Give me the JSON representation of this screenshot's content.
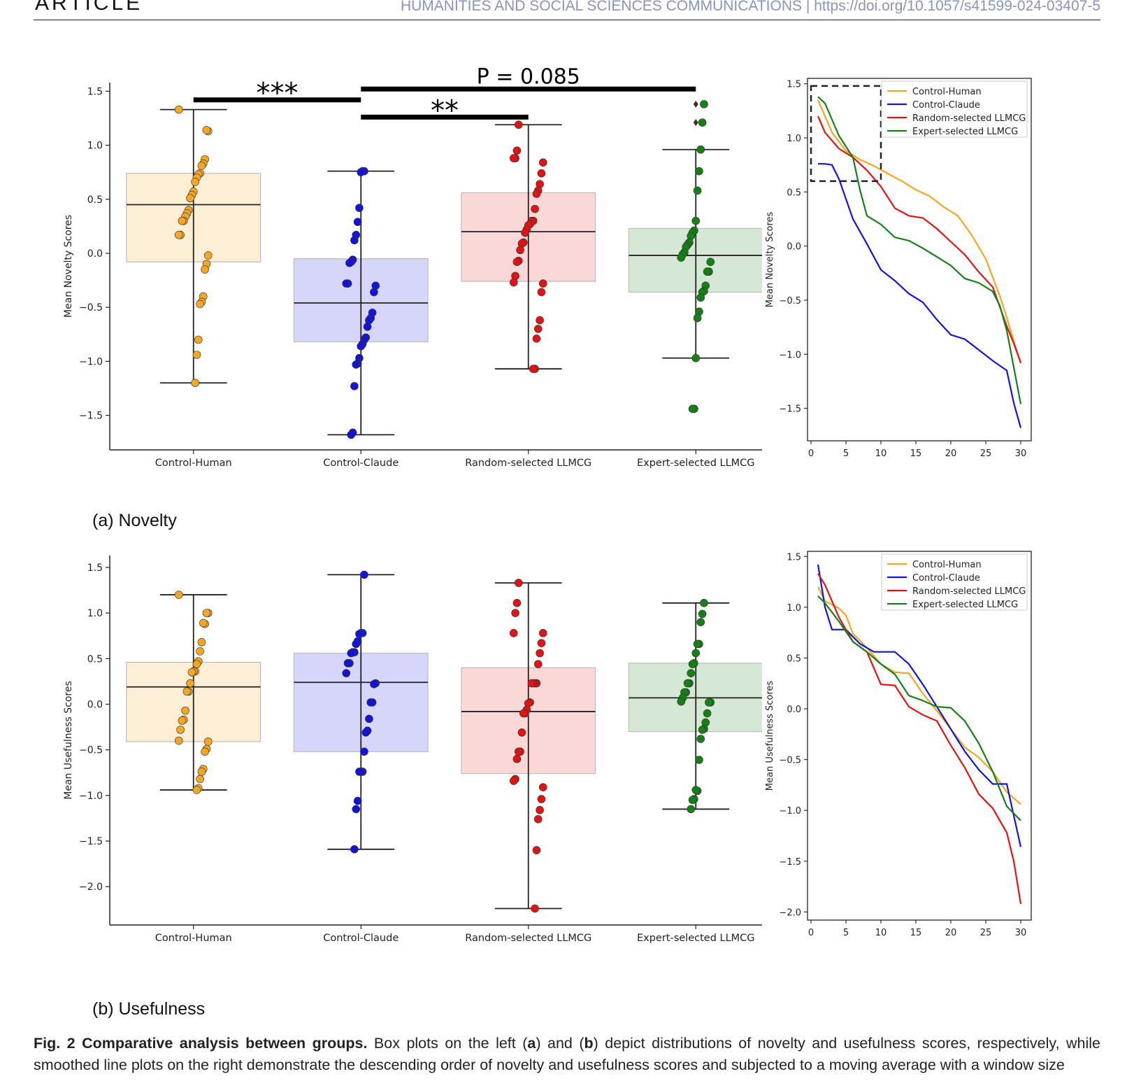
{
  "header": {
    "article_label": "ARTICLE",
    "journal": "HUMANITIES AND SOCIAL SCIENCES COMMUNICATIONS",
    "separator": "|",
    "doi": "https://doi.org/10.1057/s41599-024-03407-5"
  },
  "colors": {
    "Control-Human": "#f5a623",
    "Control-Claude": "#1414d8",
    "Random-selected LLMCG": "#e01414",
    "Expert-selected LLMCG": "#168016"
  },
  "panels": {
    "a_label": "(a) Novelty",
    "b_label": "(b) Usefulness"
  },
  "caption": {
    "fig_label": "Fig. 2 Comparative analysis between groups.",
    "text_1": " Box plots on the left (",
    "a": "a",
    "text_2": ") and (",
    "b": "b",
    "text_3": ") depict distributions of novelty and usefulness scores, respectively, while smoothed line plots on the right demonstrate the descending order of novelty and usefulness scores and subjected to a moving average with a window size"
  },
  "chart_data": [
    {
      "id": "novelty-box",
      "type": "box",
      "ylabel": "Mean Novelty Scores",
      "categories": [
        "Control-Human",
        "Control-Claude",
        "Random-selected LLMCG",
        "Expert-selected LLMCG"
      ],
      "yticks": [
        -1.5,
        -1.0,
        -0.5,
        0.0,
        0.5,
        1.0,
        1.5
      ],
      "ylim": [
        -1.82,
        1.58
      ],
      "boxes": [
        {
          "q1": -0.08,
          "median": 0.45,
          "q3": 0.74,
          "whisker_low": -1.2,
          "whisker_high": 1.33,
          "outliers": []
        },
        {
          "q1": -0.82,
          "median": -0.46,
          "q3": -0.05,
          "whisker_low": -1.68,
          "whisker_high": 0.76,
          "outliers": []
        },
        {
          "q1": -0.26,
          "median": 0.2,
          "q3": 0.56,
          "whisker_low": -1.07,
          "whisker_high": 1.19,
          "outliers": []
        },
        {
          "q1": -0.36,
          "median": -0.02,
          "q3": 0.23,
          "whisker_low": -0.97,
          "whisker_high": 0.96,
          "outliers": [
            1.38,
            1.21,
            -1.44
          ]
        }
      ],
      "points": [
        [
          1.33,
          1.13,
          1.14,
          0.87,
          0.83,
          0.81,
          0.74,
          0.73,
          0.7,
          0.66,
          0.57,
          0.54,
          0.51,
          0.4,
          0.37,
          0.34,
          0.3,
          0.3,
          0.17,
          0.17,
          -0.02,
          -0.1,
          -0.15,
          -0.4,
          -0.45,
          -0.47,
          -0.8,
          -0.94,
          -1.2
        ],
        [
          0.76,
          0.76,
          0.75,
          0.42,
          0.29,
          0.17,
          0.12,
          -0.06,
          -0.08,
          -0.09,
          -0.28,
          -0.28,
          -0.3,
          -0.36,
          -0.55,
          -0.6,
          -0.62,
          -0.68,
          -0.78,
          -0.8,
          -0.84,
          -0.86,
          -0.97,
          -1.02,
          -1.03,
          -1.23,
          -1.66,
          -1.68
        ],
        [
          1.19,
          0.95,
          0.88,
          0.88,
          0.84,
          0.74,
          0.64,
          0.58,
          0.55,
          0.41,
          0.3,
          0.3,
          0.27,
          0.26,
          0.22,
          0.19,
          0.1,
          0.09,
          0.03,
          -0.07,
          -0.08,
          -0.21,
          -0.27,
          -0.28,
          -0.36,
          -0.62,
          -0.7,
          -0.79,
          -1.07,
          -1.07
        ],
        [
          1.38,
          1.21,
          0.96,
          0.76,
          0.58,
          0.3,
          0.21,
          0.19,
          0.16,
          0.1,
          0.08,
          0.06,
          0.01,
          -0.01,
          -0.04,
          -0.08,
          -0.17,
          -0.17,
          -0.3,
          -0.35,
          -0.36,
          -0.41,
          -0.54,
          -0.6,
          -0.97,
          -1.44,
          -1.44
        ]
      ],
      "annotations": [
        {
          "text": "***",
          "from": 0,
          "to": 1,
          "y": 1.42
        },
        {
          "text": "**",
          "from": 1,
          "to": 2,
          "y": 1.26
        },
        {
          "text": "P = 0.085",
          "from": 1,
          "to": 3,
          "y": 1.52
        }
      ]
    },
    {
      "id": "novelty-line",
      "type": "line",
      "ylabel": "Mean Novelty Scores",
      "xticks": [
        0,
        5,
        10,
        15,
        20,
        25,
        30
      ],
      "yticks": [
        -1.5,
        -1.0,
        -0.5,
        0.0,
        0.5,
        1.0,
        1.5
      ],
      "xlim": [
        -0.5,
        31.5
      ],
      "ylim": [
        -1.8,
        1.55
      ],
      "legend": "top-right",
      "highlight_box": {
        "x": [
          0,
          10
        ],
        "y": [
          0.6,
          1.48
        ]
      },
      "series": [
        {
          "name": "Control-Human",
          "x": [
            1,
            3,
            5,
            7,
            9,
            11,
            13,
            15,
            17,
            19,
            21,
            23,
            25,
            27,
            28,
            29,
            30
          ],
          "y": [
            1.35,
            1.05,
            0.88,
            0.8,
            0.74,
            0.67,
            0.6,
            0.52,
            0.46,
            0.36,
            0.28,
            0.1,
            -0.12,
            -0.46,
            -0.66,
            -0.88,
            -1.08
          ]
        },
        {
          "name": "Control-Claude",
          "x": [
            1,
            2,
            3,
            4,
            6,
            8,
            10,
            12,
            14,
            16,
            18,
            20,
            22,
            24,
            26,
            28,
            29,
            30
          ],
          "y": [
            0.76,
            0.76,
            0.75,
            0.62,
            0.25,
            0.02,
            -0.22,
            -0.32,
            -0.44,
            -0.52,
            -0.68,
            -0.82,
            -0.86,
            -0.96,
            -1.06,
            -1.15,
            -1.45,
            -1.68
          ]
        },
        {
          "name": "Random-selected LLMCG",
          "x": [
            1,
            2,
            4,
            6,
            8,
            10,
            12,
            14,
            16,
            18,
            20,
            22,
            24,
            26,
            27,
            28,
            29,
            30
          ],
          "y": [
            1.2,
            1.05,
            0.9,
            0.82,
            0.7,
            0.55,
            0.35,
            0.28,
            0.26,
            0.16,
            0.04,
            -0.08,
            -0.24,
            -0.38,
            -0.56,
            -0.74,
            -0.9,
            -1.08
          ]
        },
        {
          "name": "Expert-selected LLMCG",
          "x": [
            1,
            2,
            4,
            6,
            7,
            8,
            10,
            12,
            14,
            16,
            18,
            20,
            22,
            24,
            26,
            27,
            28,
            29,
            30
          ],
          "y": [
            1.38,
            1.32,
            1.02,
            0.82,
            0.52,
            0.28,
            0.2,
            0.08,
            0.05,
            -0.02,
            -0.1,
            -0.18,
            -0.3,
            -0.34,
            -0.42,
            -0.55,
            -0.78,
            -1.12,
            -1.46
          ]
        }
      ]
    },
    {
      "id": "usefulness-box",
      "type": "box",
      "ylabel": "Mean Usefulness Scores",
      "categories": [
        "Control-Human",
        "Control-Claude",
        "Random-selected LLMCG",
        "Expert-selected LLMCG"
      ],
      "yticks": [
        -2.0,
        -1.5,
        -1.0,
        -0.5,
        0.0,
        0.5,
        1.0,
        1.5
      ],
      "ylim": [
        -2.42,
        1.63
      ],
      "boxes": [
        {
          "q1": -0.41,
          "median": 0.19,
          "q3": 0.46,
          "whisker_low": -0.94,
          "whisker_high": 1.2,
          "outliers": []
        },
        {
          "q1": -0.52,
          "median": 0.24,
          "q3": 0.56,
          "whisker_low": -1.59,
          "whisker_high": 1.42,
          "outliers": []
        },
        {
          "q1": -0.76,
          "median": -0.08,
          "q3": 0.4,
          "whisker_low": -2.24,
          "whisker_high": 1.33,
          "outliers": []
        },
        {
          "q1": -0.3,
          "median": 0.07,
          "q3": 0.45,
          "whisker_low": -1.15,
          "whisker_high": 1.11,
          "outliers": []
        }
      ],
      "points": [
        [
          1.2,
          1.0,
          1.0,
          0.88,
          0.89,
          0.68,
          0.58,
          0.47,
          0.44,
          0.36,
          0.36,
          0.35,
          0.23,
          0.14,
          0.14,
          -0.07,
          -0.17,
          -0.18,
          -0.28,
          -0.4,
          -0.41,
          -0.49,
          -0.52,
          -0.71,
          -0.74,
          -0.82,
          -0.92,
          -0.94
        ],
        [
          1.42,
          0.78,
          0.78,
          0.77,
          0.69,
          0.66,
          0.57,
          0.57,
          0.56,
          0.45,
          0.45,
          0.34,
          0.23,
          0.22,
          0.02,
          0.02,
          -0.16,
          -0.29,
          -0.31,
          -0.52,
          -0.74,
          -0.74,
          -0.74,
          -1.06,
          -1.15,
          -1.59
        ],
        [
          1.33,
          1.11,
          1.0,
          0.78,
          0.78,
          0.67,
          0.56,
          0.44,
          0.23,
          0.23,
          0.23,
          0.23,
          0.02,
          0.01,
          -0.06,
          -0.1,
          -0.1,
          -0.31,
          -0.52,
          -0.52,
          -0.6,
          -0.82,
          -0.84,
          -0.91,
          -1.04,
          -1.16,
          -1.26,
          -1.6,
          -2.24
        ],
        [
          1.11,
          0.99,
          0.9,
          0.66,
          0.66,
          0.56,
          0.45,
          0.44,
          0.34,
          0.23,
          0.23,
          0.13,
          0.13,
          0.07,
          0.03,
          0.02,
          0.02,
          -0.1,
          -0.2,
          -0.27,
          -0.28,
          -0.38,
          -0.61,
          -0.95,
          -0.94,
          -1.04,
          -1.05,
          -1.15
        ]
      ]
    },
    {
      "id": "usefulness-line",
      "type": "line",
      "ylabel": "Mean Usefulness Scores",
      "xticks": [
        0,
        5,
        10,
        15,
        20,
        25,
        30
      ],
      "yticks": [
        -2.0,
        -1.5,
        -1.0,
        -0.5,
        0.0,
        0.5,
        1.0,
        1.5
      ],
      "xlim": [
        -0.5,
        31.5
      ],
      "ylim": [
        -2.08,
        1.55
      ],
      "legend": "top-right",
      "series": [
        {
          "name": "Control-Human",
          "x": [
            1,
            2,
            4,
            5,
            6,
            8,
            10,
            12,
            14,
            16,
            18,
            20,
            22,
            24,
            26,
            28,
            30
          ],
          "y": [
            1.2,
            1.06,
            0.99,
            0.92,
            0.74,
            0.6,
            0.44,
            0.36,
            0.35,
            0.15,
            -0.02,
            -0.2,
            -0.38,
            -0.48,
            -0.62,
            -0.82,
            -0.94
          ]
        },
        {
          "name": "Control-Claude",
          "x": [
            1,
            2,
            3,
            5,
            7,
            9,
            10,
            12,
            14,
            16,
            18,
            20,
            22,
            24,
            26,
            27,
            28,
            30
          ],
          "y": [
            1.42,
            1.0,
            0.78,
            0.78,
            0.64,
            0.56,
            0.56,
            0.56,
            0.44,
            0.24,
            0.02,
            -0.2,
            -0.42,
            -0.6,
            -0.74,
            -0.74,
            -0.74,
            -1.36
          ]
        },
        {
          "name": "Random-selected LLMCG",
          "x": [
            1,
            2,
            4,
            6,
            8,
            10,
            12,
            14,
            16,
            18,
            20,
            22,
            24,
            26,
            28,
            29,
            30
          ],
          "y": [
            1.33,
            1.22,
            0.9,
            0.66,
            0.56,
            0.24,
            0.23,
            0.02,
            -0.06,
            -0.12,
            -0.36,
            -0.58,
            -0.84,
            -0.98,
            -1.22,
            -1.5,
            -1.92
          ]
        },
        {
          "name": "Expert-selected LLMCG",
          "x": [
            1,
            2,
            4,
            6,
            8,
            10,
            12,
            14,
            16,
            18,
            20,
            22,
            24,
            26,
            28,
            30
          ],
          "y": [
            1.11,
            1.04,
            0.86,
            0.66,
            0.56,
            0.44,
            0.34,
            0.13,
            0.08,
            0.02,
            0.01,
            -0.12,
            -0.34,
            -0.62,
            -0.96,
            -1.1
          ]
        }
      ]
    }
  ]
}
